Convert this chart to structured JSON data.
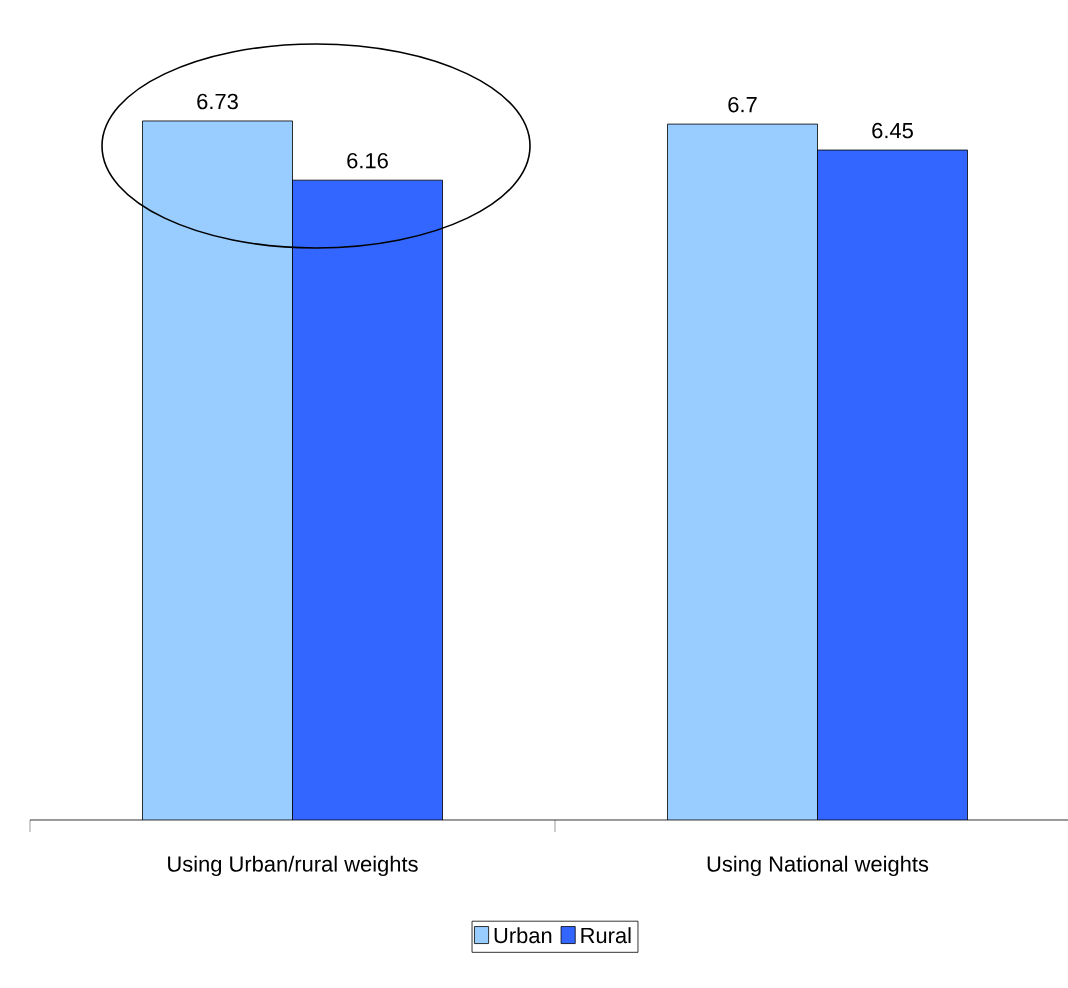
{
  "chart_data": {
    "type": "bar",
    "categories": [
      "Using Urban/rural weights",
      "Using National weights"
    ],
    "series": [
      {
        "name": "Urban",
        "color": "#99ccff",
        "values": [
          6.73,
          6.7
        ]
      },
      {
        "name": "Rural",
        "color": "#3366ff",
        "values": [
          6.16,
          6.45
        ]
      }
    ],
    "data_labels": true,
    "legend": "bottom"
  }
}
